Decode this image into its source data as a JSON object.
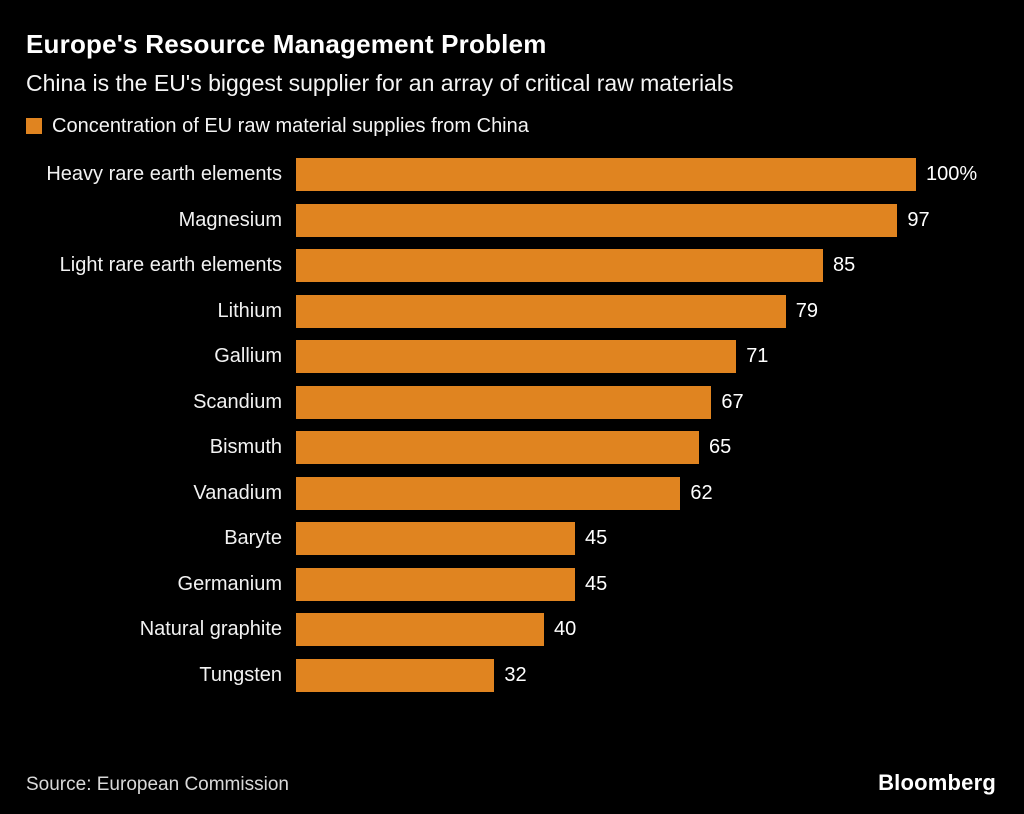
{
  "header": {
    "title": "Europe's Resource Management Problem",
    "subtitle": "China is the EU's biggest supplier for an array of critical raw materials"
  },
  "legend": {
    "label": "Concentration of EU raw material supplies from China",
    "color": "#E08420"
  },
  "chart_data": {
    "type": "bar",
    "orientation": "horizontal",
    "title": "Europe's Resource Management Problem",
    "subtitle": "China is the EU's biggest supplier for an array of critical raw materials",
    "series_name": "Concentration of EU raw material supplies from China",
    "categories": [
      "Heavy rare earth elements",
      "Magnesium",
      "Light rare earth elements",
      "Lithium",
      "Gallium",
      "Scandium",
      "Bismuth",
      "Vanadium",
      "Baryte",
      "Germanium",
      "Natural graphite",
      "Tungsten"
    ],
    "values": [
      100,
      97,
      85,
      79,
      71,
      67,
      65,
      62,
      45,
      45,
      40,
      32
    ],
    "value_labels": [
      "100%",
      "97",
      "85",
      "79",
      "71",
      "67",
      "65",
      "62",
      "45",
      "45",
      "40",
      "32"
    ],
    "xlim": [
      0,
      100
    ],
    "unit": "%",
    "bar_color": "#E08420",
    "background_color": "#000000",
    "grid": false,
    "legend_position": "top-left"
  },
  "footer": {
    "source": "Source: European Commission",
    "brand": "Bloomberg"
  }
}
